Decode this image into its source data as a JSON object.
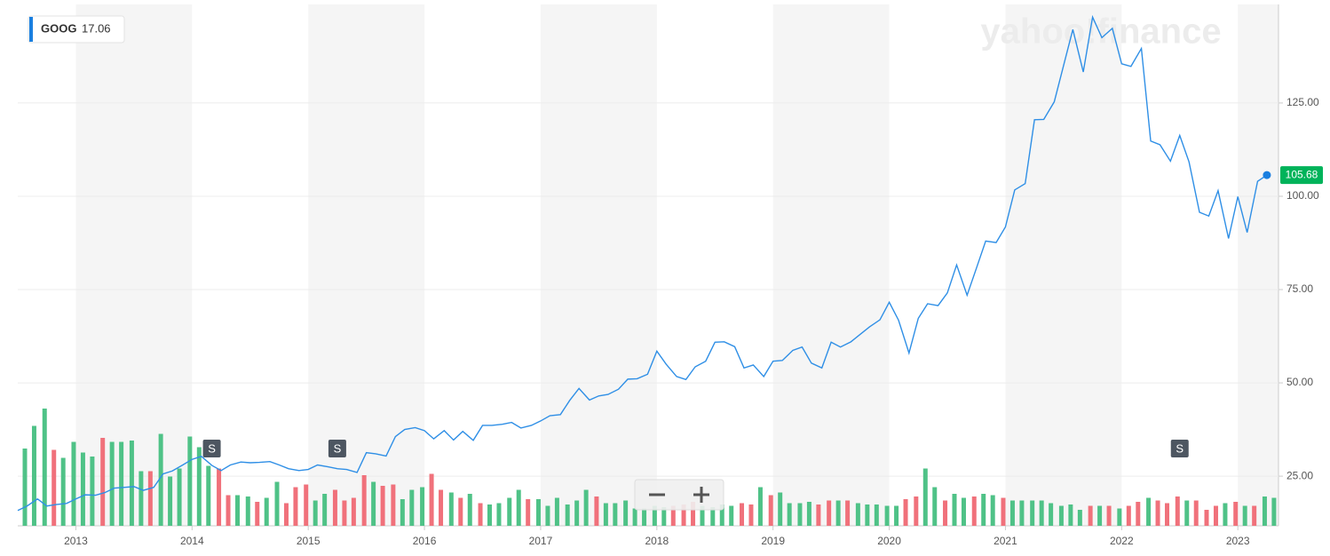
{
  "symbol": "GOOG",
  "badge_value": 17.06,
  "watermark": "yahoo!finance",
  "chart_data": {
    "type": "line",
    "x": [
      2012.5,
      2012.58,
      2012.67,
      2012.75,
      2012.83,
      2012.92,
      2013,
      2013.08,
      2013.17,
      2013.25,
      2013.33,
      2013.42,
      2013.5,
      2013.58,
      2013.67,
      2013.75,
      2013.83,
      2013.92,
      2014,
      2014.08,
      2014.17,
      2014.25,
      2014.33,
      2014.42,
      2014.5,
      2014.58,
      2014.67,
      2014.75,
      2014.83,
      2014.92,
      2015,
      2015.08,
      2015.17,
      2015.25,
      2015.33,
      2015.42,
      2015.5,
      2015.58,
      2015.67,
      2015.75,
      2015.83,
      2015.92,
      2016,
      2016.08,
      2016.17,
      2016.25,
      2016.33,
      2016.42,
      2016.5,
      2016.58,
      2016.67,
      2016.75,
      2016.83,
      2016.92,
      2017,
      2017.08,
      2017.17,
      2017.25,
      2017.33,
      2017.42,
      2017.5,
      2017.58,
      2017.67,
      2017.75,
      2017.83,
      2017.92,
      2018,
      2018.08,
      2018.17,
      2018.25,
      2018.33,
      2018.42,
      2018.5,
      2018.58,
      2018.67,
      2018.75,
      2018.83,
      2018.92,
      2019,
      2019.08,
      2019.17,
      2019.25,
      2019.33,
      2019.42,
      2019.5,
      2019.58,
      2019.67,
      2019.75,
      2019.83,
      2019.92,
      2020,
      2020.08,
      2020.17,
      2020.25,
      2020.33,
      2020.42,
      2020.5,
      2020.58,
      2020.67,
      2020.75,
      2020.83,
      2020.92,
      2021,
      2021.08,
      2021.17,
      2021.25,
      2021.33,
      2021.42,
      2021.5,
      2021.58,
      2021.67,
      2021.75,
      2021.83,
      2021.92,
      2022,
      2022.08,
      2022.17,
      2022.25,
      2022.33,
      2022.42,
      2022.5,
      2022.58,
      2022.67,
      2022.75,
      2022.83,
      2022.92,
      2023,
      2023.08,
      2023.17,
      2023.25
    ],
    "series": [
      {
        "name": "GOOG",
        "color": "#2f8fe6",
        "values": [
          15.8,
          17,
          18.9,
          17,
          17.4,
          17.7,
          18.9,
          20,
          19.9,
          20.6,
          21.8,
          22,
          22.2,
          21.2,
          22,
          25.6,
          26.4,
          28,
          29.5,
          30.3,
          27.9,
          26.5,
          28,
          28.8,
          28.6,
          28.7,
          28.9,
          28,
          27,
          26.5,
          26.8,
          28,
          27.5,
          27,
          26.8,
          26,
          31.3,
          31,
          30.4,
          35.6,
          37.5,
          38,
          37.2,
          35,
          37.2,
          34.7,
          37,
          34.6,
          38.6,
          38.6,
          38.9,
          39.4,
          37.9,
          38.6,
          39.8,
          41.2,
          41.5,
          45.3,
          48.5,
          45.4,
          46.5,
          46.9,
          48.3,
          51,
          51.1,
          52.3,
          58.5,
          55,
          51.7,
          50.9,
          54.3,
          55.8,
          60.9,
          61,
          59.7,
          54,
          54.8,
          51.7,
          55.8,
          56,
          58.7,
          59.6,
          55.3,
          54,
          60.9,
          59.6,
          61,
          63,
          65,
          66.9,
          71.6,
          66.8,
          58,
          67.3,
          71.2,
          70.7,
          74.1,
          81.6,
          73.5,
          80.7,
          88,
          87.6,
          91.8,
          101.7,
          103.4,
          120.5,
          120.6,
          125.3,
          135,
          144.7,
          133.3,
          148,
          142.5,
          145,
          135.5,
          134.8,
          139.6,
          114.8,
          113.8,
          109.4,
          116.3,
          109.2,
          95.7,
          94.7,
          101.5,
          88.7,
          99.9,
          90.3,
          104,
          105.68
        ]
      }
    ],
    "volume": {
      "up_color": "#4fc287",
      "down_color": "#f0717b",
      "ylim": [
        0,
        100
      ],
      "values": [
        58,
        75,
        88,
        57,
        51,
        63,
        55,
        52,
        66,
        63,
        63,
        64,
        41,
        41,
        69,
        37,
        43,
        67,
        59,
        45,
        43,
        23,
        23,
        22,
        18,
        21,
        33,
        17,
        29,
        31,
        19,
        24,
        27,
        19,
        21,
        38,
        33,
        30,
        31,
        20,
        27,
        29,
        39,
        27,
        25,
        21,
        24,
        17,
        16,
        17,
        21,
        27,
        20,
        20,
        15,
        21,
        16,
        19,
        27,
        22,
        17,
        17,
        19,
        13,
        13,
        15,
        14,
        15,
        16,
        18,
        15,
        14,
        16,
        15,
        17,
        16,
        29,
        23,
        25,
        17,
        17,
        18,
        16,
        19,
        19,
        19,
        17,
        16,
        16,
        15,
        15,
        20,
        22,
        43,
        29,
        19,
        24,
        21,
        22,
        24,
        23,
        21,
        19,
        19,
        19,
        19,
        17,
        15,
        16,
        12,
        15,
        15,
        15,
        13,
        15,
        18,
        21,
        19,
        17,
        22,
        19,
        19,
        12,
        15,
        17,
        18,
        15,
        15,
        22,
        21
      ]
    },
    "annotations": [
      {
        "x": 2014.17,
        "label": "S"
      },
      {
        "x": 2015.25,
        "label": "S"
      },
      {
        "x": 2022.5,
        "label": "S"
      }
    ],
    "xlim": [
      2012.5,
      2023.35
    ],
    "xticks": [
      2013,
      2014,
      2015,
      2016,
      2017,
      2018,
      2019,
      2020,
      2021,
      2022,
      2023
    ],
    "ylim": [
      11.7,
      151.4
    ],
    "yticks": [
      {
        "value": 25,
        "label": "25.00"
      },
      {
        "value": 50,
        "label": "50.00"
      },
      {
        "value": 75,
        "label": "75.00"
      },
      {
        "value": 100,
        "label": "100.00"
      },
      {
        "value": 125,
        "label": "125.00"
      }
    ],
    "grid": true
  }
}
